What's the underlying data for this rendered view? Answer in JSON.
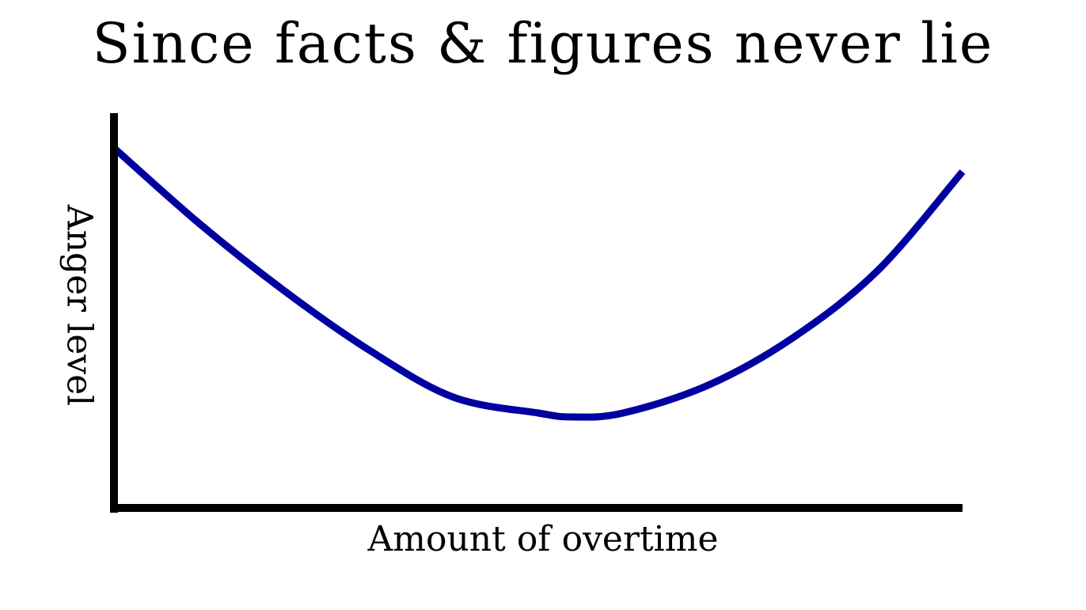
{
  "chart_data": {
    "type": "line",
    "title": "Since facts & figures never lie",
    "xlabel": "Amount of overtime",
    "ylabel": "Anger level",
    "grid": false,
    "legend": "none",
    "ticks": "none",
    "xlim": [
      0,
      100
    ],
    "ylim": [
      0,
      100
    ],
    "series": [
      {
        "x": [
          0,
          10,
          20,
          30,
          40,
          50,
          54,
          60,
          70,
          80,
          90,
          100
        ],
        "y": [
          91,
          72,
          55,
          40,
          28,
          24,
          23,
          24,
          31,
          43,
          60,
          85
        ]
      }
    ],
    "line_color": "#0000a0",
    "axis_color": "#000000"
  }
}
